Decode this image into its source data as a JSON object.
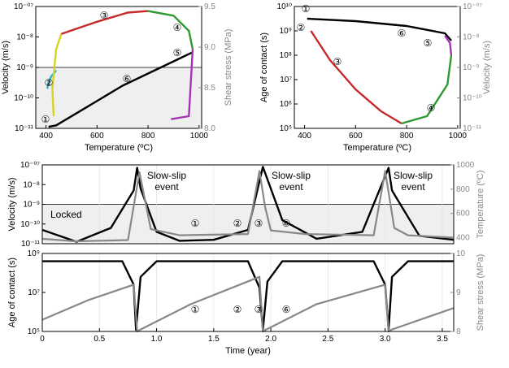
{
  "chart_data": [
    {
      "type": "line",
      "panel": "top-left",
      "xlabel": "Temperature (ºC)",
      "ylabel": "Velocity (m/s)",
      "y2label": "Shear stress (MPa)",
      "xlim": [
        360,
        1010
      ],
      "xticks": [
        "400",
        "600",
        "800",
        "1000"
      ],
      "ylim_log10": [
        -11,
        -7
      ],
      "yticks": [
        "10⁻¹¹",
        "10⁻¹⁰",
        "10⁻⁹",
        "10⁻⁸",
        "10⁻⁰⁷"
      ],
      "y2lim": [
        8.0,
        9.5
      ],
      "y2ticks": [
        "8.0",
        "8.5",
        "9.0",
        "9.5"
      ],
      "shaded_below_log10": -9,
      "labels": [
        "①",
        "②",
        "③",
        "④",
        "⑤",
        "⑥"
      ],
      "series": [
        {
          "color": "#000000",
          "x": [
            410,
            440,
            560,
            700,
            800,
            950,
            975
          ],
          "y_log10": [
            -10.95,
            -10.9,
            -10.3,
            -9.6,
            -9.2,
            -8.6,
            -8.5
          ]
        },
        {
          "color": "#29b6c9",
          "x": [
            405,
            410,
            420,
            430,
            440
          ],
          "y_log10": [
            -9.7,
            -9.5,
            -9.3,
            -9.2,
            -9.1
          ]
        },
        {
          "color": "#d8d220",
          "x": [
            430,
            425,
            440,
            460
          ],
          "y_log10": [
            -10.6,
            -9.7,
            -8.4,
            -7.9
          ]
        },
        {
          "color": "#c62828",
          "x": [
            460,
            600,
            720,
            800
          ],
          "y_log10": [
            -7.9,
            -7.5,
            -7.2,
            -7.15
          ]
        },
        {
          "color": "#2e9a2e",
          "x": [
            800,
            900,
            960,
            975
          ],
          "y_log10": [
            -7.15,
            -7.3,
            -7.8,
            -8.4
          ]
        },
        {
          "color": "#a632b5",
          "x": [
            975,
            960,
            890
          ],
          "y_log10": [
            -8.4,
            -10.6,
            -10.7
          ]
        }
      ]
    },
    {
      "type": "line",
      "panel": "top-right",
      "xlabel": "Temperature (ºC)",
      "ylabel": "Age of contact (s)",
      "y2label": "Velocity (m/s)",
      "xlim": [
        360,
        1010
      ],
      "xticks": [
        "400",
        "600",
        "800",
        "1000"
      ],
      "ylim_log10": [
        5,
        10
      ],
      "yticks": [
        "10⁵",
        "10⁶",
        "10⁷",
        "10⁸",
        "10⁹",
        "10¹⁰"
      ],
      "y2lim_log10": [
        -11,
        -7
      ],
      "y2ticks": [
        "10⁻¹¹",
        "10⁻¹⁰",
        "10⁻⁹",
        "10⁻⁸",
        "10⁻⁰⁷"
      ],
      "labels": [
        "①",
        "②",
        "③",
        "④",
        "⑤",
        "⑥"
      ],
      "series": [
        {
          "color": "#000000",
          "x": [
            410,
            600,
            800,
            950,
            975
          ],
          "y_log10": [
            9.5,
            9.4,
            9.2,
            8.9,
            8.6
          ]
        },
        {
          "color": "#c62828",
          "x": [
            425,
            500,
            600,
            700,
            780
          ],
          "y_log10": [
            9.0,
            7.8,
            6.6,
            5.7,
            5.2
          ]
        },
        {
          "color": "#2e9a2e",
          "x": [
            780,
            880,
            960,
            975
          ],
          "y_log10": [
            5.2,
            5.5,
            6.8,
            8.0
          ]
        },
        {
          "color": "#a632b5",
          "x": [
            975,
            970,
            950
          ],
          "y_log10": [
            8.0,
            8.5,
            8.8
          ]
        }
      ]
    },
    {
      "type": "line",
      "panel": "middle",
      "ylabel": "Velocity (m/s)",
      "y2label": "Temperature (ºC)",
      "xlim": [
        0,
        3.6
      ],
      "ylim_log10": [
        -11,
        -7
      ],
      "yticks": [
        "10⁻¹¹",
        "10⁻¹⁰",
        "10⁻⁹",
        "10⁻⁸",
        "10⁻⁰⁷"
      ],
      "y2lim": [
        350,
        1000
      ],
      "y2ticks": [
        "400",
        "600",
        "800",
        "1000"
      ],
      "annotations": [
        "Slow-slip event",
        "Slow-slip event",
        "Slow-slip event",
        "Locked"
      ],
      "shaded_below_log10": -9,
      "labels": [
        "①",
        "②",
        "③",
        "⑥"
      ],
      "series": [
        {
          "name": "Velocity",
          "color": "#000000",
          "x": [
            0,
            0.3,
            0.6,
            0.8,
            0.83,
            0.86,
            1.0,
            1.2,
            1.5,
            1.8,
            1.93,
            2.1,
            2.4,
            2.8,
            3.03,
            3.06,
            3.3,
            3.6
          ],
          "y_log10": [
            -10.3,
            -10.9,
            -10.2,
            -8.3,
            -7.15,
            -8.2,
            -10.4,
            -10.85,
            -10.8,
            -10.3,
            -7.1,
            -9.8,
            -10.75,
            -10.4,
            -7.15,
            -8.3,
            -10.6,
            -10.8
          ]
        },
        {
          "name": "Temperature",
          "color": "#888888",
          "x": [
            0,
            0.3,
            0.75,
            0.85,
            0.95,
            1.2,
            1.8,
            1.9,
            1.95,
            2.0,
            2.3,
            2.9,
            3.0,
            3.08,
            3.2,
            3.6
          ],
          "y": [
            390,
            370,
            380,
            940,
            470,
            420,
            430,
            950,
            650,
            460,
            430,
            420,
            950,
            480,
            420,
            400
          ]
        }
      ]
    },
    {
      "type": "line",
      "panel": "bottom",
      "xlabel": "Time (year)",
      "ylabel": "Age of contact (s)",
      "y2label": "Shear stress (MPa)",
      "xlim": [
        0,
        3.6
      ],
      "xticks": [
        "0",
        "0.5",
        "1.0",
        "1.5",
        "2.0",
        "2.5",
        "3.0",
        "3.5"
      ],
      "ylim_log10": [
        5,
        10
      ],
      "yticks": [
        "10⁵",
        "10⁷",
        "10⁹"
      ],
      "y2lim": [
        8,
        10
      ],
      "y2ticks": [
        "8",
        "9",
        "10"
      ],
      "labels": [
        "①",
        "②",
        "③",
        "⑥"
      ],
      "series": [
        {
          "name": "Age of contact",
          "color": "#000000",
          "x": [
            0,
            0.7,
            0.8,
            0.82,
            0.86,
            1.0,
            1.8,
            1.9,
            1.93,
            1.97,
            2.1,
            2.9,
            3.0,
            3.03,
            3.06,
            3.2,
            3.6
          ],
          "y_log10": [
            9.5,
            9.5,
            8.0,
            5.1,
            8.5,
            9.5,
            9.5,
            7.8,
            5.1,
            8.2,
            9.5,
            9.5,
            8.0,
            5.1,
            8.5,
            9.5,
            9.5
          ]
        },
        {
          "name": "Shear stress",
          "color": "#888888",
          "x": [
            0,
            0.4,
            0.8,
            0.83,
            0.86,
            1.3,
            1.9,
            1.93,
            1.96,
            2.4,
            3.0,
            3.03,
            3.06,
            3.6
          ],
          "y": [
            8.3,
            8.8,
            9.2,
            8.0,
            8.05,
            8.7,
            9.4,
            8.0,
            8.05,
            8.7,
            9.2,
            8.0,
            8.05,
            8.6
          ]
        }
      ]
    }
  ]
}
